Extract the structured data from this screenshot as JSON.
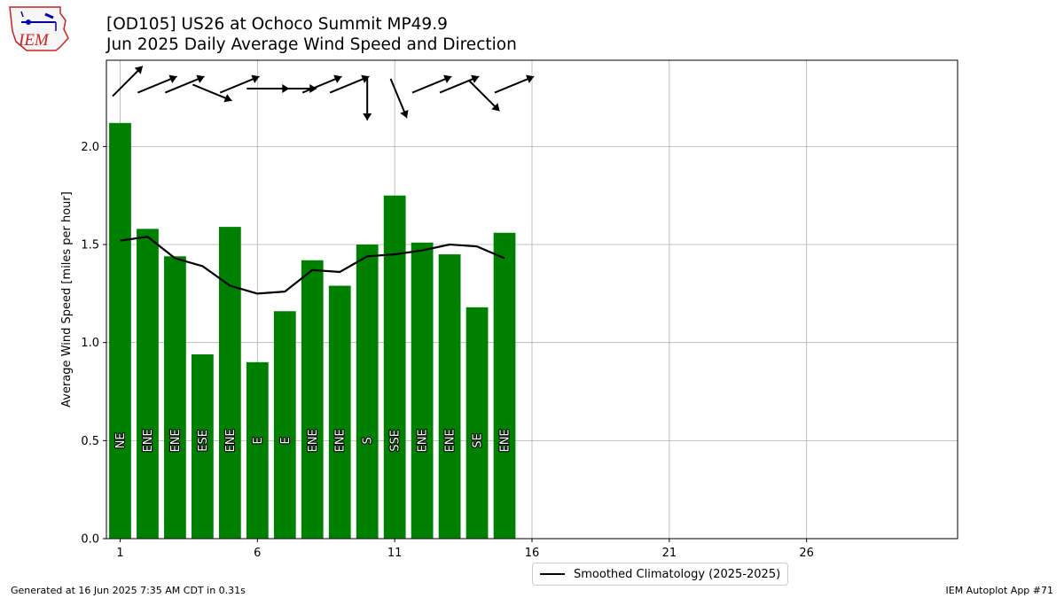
{
  "header": {
    "logo_text": "IEM",
    "title_line1": "[OD105] US26 at Ochoco Summit MP49.9",
    "title_line2": "Jun 2025 Daily Average Wind Speed and Direction"
  },
  "footer": {
    "left": "Generated at 16 Jun 2025 7:35 AM CDT in 0.31s",
    "right": "IEM Autoplot App #71"
  },
  "colors": {
    "bar": "#008000",
    "line": "#000000",
    "grid": "#b0b0b0",
    "logo_red": "#cc2222",
    "logo_blue": "#0000aa"
  },
  "chart_data": {
    "type": "bar",
    "ylabel": "Average Wind Speed [miles per hour]",
    "xlabel": "",
    "xlim": [
      0.5,
      31.5
    ],
    "ylim": [
      0,
      2.44
    ],
    "xticks": [
      1,
      6,
      11,
      16,
      21,
      26
    ],
    "yticks": [
      0.0,
      0.5,
      1.0,
      1.5,
      2.0
    ],
    "grid": true,
    "legend_position": "bottom-center",
    "x": [
      1,
      2,
      3,
      4,
      5,
      6,
      7,
      8,
      9,
      10,
      11,
      12,
      13,
      14,
      15
    ],
    "series": [
      {
        "type": "bar",
        "values": [
          2.12,
          1.58,
          1.44,
          0.94,
          1.59,
          0.9,
          1.16,
          1.42,
          1.29,
          1.5,
          1.75,
          1.51,
          1.45,
          1.18,
          1.56
        ]
      },
      {
        "type": "line",
        "name": "Smoothed Climatology (2025-2025)",
        "values": [
          1.52,
          1.54,
          1.43,
          1.39,
          1.29,
          1.25,
          1.26,
          1.37,
          1.36,
          1.44,
          1.45,
          1.47,
          1.5,
          1.49,
          1.43
        ]
      }
    ],
    "directions": [
      "NE",
      "ENE",
      "ENE",
      "ESE",
      "ENE",
      "E",
      "E",
      "ENE",
      "ENE",
      "S",
      "SSE",
      "ENE",
      "ENE",
      "SE",
      "ENE"
    ],
    "direction_degrees": [
      45,
      67.5,
      67.5,
      112.5,
      67.5,
      90,
      90,
      67.5,
      67.5,
      180,
      157.5,
      67.5,
      67.5,
      135,
      67.5
    ]
  }
}
